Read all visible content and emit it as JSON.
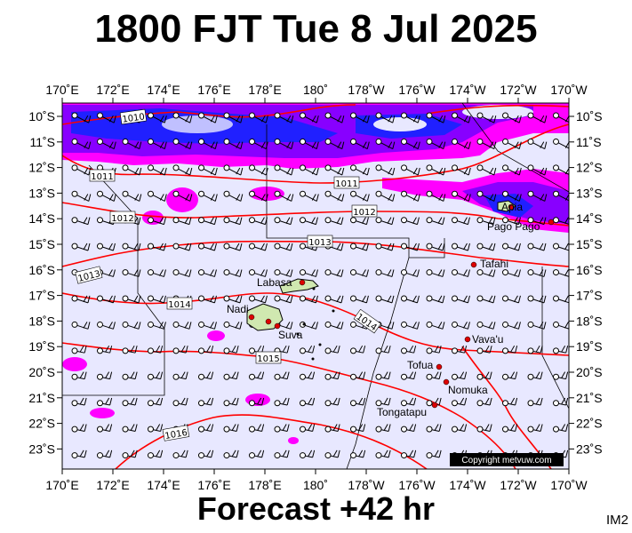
{
  "title": "1800 FJT Tue 8 Jul 2025",
  "footer": "Forecast +42 hr",
  "corner_label": "IM2",
  "copyright": "Copyright metvuw.com",
  "map": {
    "lon_labels": [
      "170˚E",
      "172˚E",
      "174˚E",
      "176˚E",
      "178˚E",
      "180˚",
      "178˚W",
      "176˚W",
      "174˚W",
      "172˚W",
      "170˚W"
    ],
    "lat_labels": [
      "10˚S",
      "11˚S",
      "12˚S",
      "13˚S",
      "14˚S",
      "15˚S",
      "16˚S",
      "17˚S",
      "18˚S",
      "19˚S",
      "20˚S",
      "21˚S",
      "22˚S",
      "23˚S"
    ],
    "isobar_labels": [
      "1010",
      "1011",
      "1011",
      "1012",
      "1012",
      "1013",
      "1013",
      "1014",
      "1014",
      "1015",
      "1016"
    ],
    "places": [
      "Labasa",
      "Nadi",
      "Suva",
      "Apia",
      "Pago Pago",
      "Tafahi",
      "Vava'u",
      "Tofua",
      "Nomuka",
      "Tongatapu"
    ],
    "colors": {
      "background": "#e8e8ff",
      "rain_heavy": "#2020ff",
      "rain_moderate": "#8800ff",
      "rain_light": "#ff00ff",
      "isobar": "#ff0000",
      "land": "#d0e8b0"
    }
  }
}
